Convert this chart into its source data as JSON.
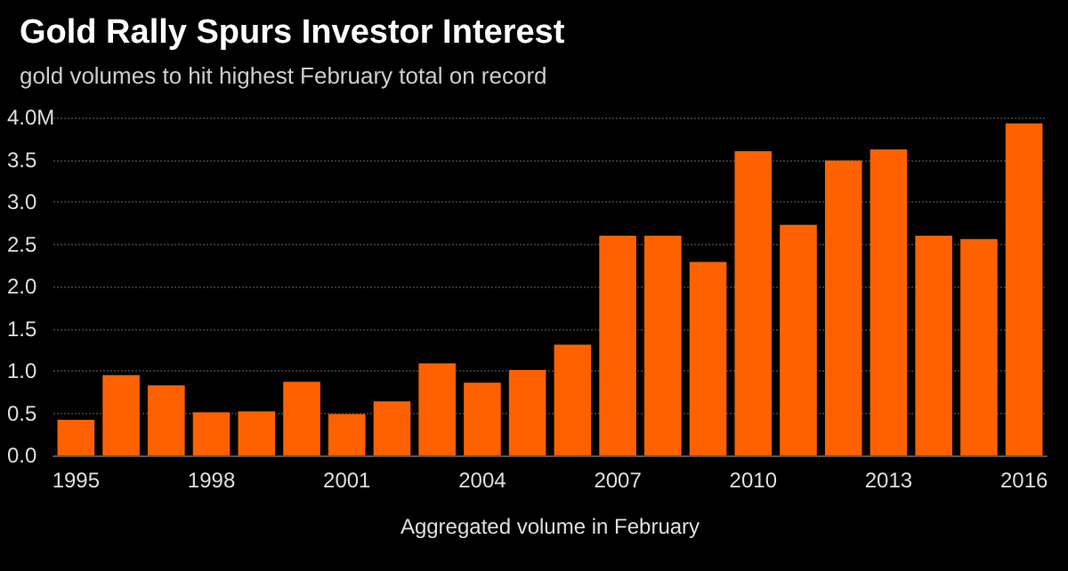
{
  "chart_data": {
    "type": "bar",
    "title": "Gold Rally Spurs Investor Interest",
    "subtitle": "gold volumes to hit highest February total on record",
    "xlabel": "Aggregated volume in February",
    "categories": [
      "1995",
      null,
      null,
      "1998",
      null,
      null,
      "2001",
      null,
      null,
      "2004",
      null,
      null,
      "2007",
      null,
      null,
      "2010",
      null,
      null,
      "2013",
      null,
      null,
      "2016"
    ],
    "values": [
      0.42,
      0.95,
      0.83,
      0.51,
      0.52,
      0.87,
      0.49,
      0.64,
      1.09,
      0.86,
      1.01,
      1.31,
      2.6,
      2.6,
      2.29,
      3.6,
      2.73,
      3.49,
      3.62,
      2.6,
      2.56,
      3.93
    ],
    "color": "#ff6100",
    "ylim": [
      0,
      4
    ],
    "yticks": [
      {
        "value": 0,
        "label": "0.0"
      },
      {
        "value": 0.5,
        "label": "0.5"
      },
      {
        "value": 1,
        "label": "1.0"
      },
      {
        "value": 1.5,
        "label": "1.5"
      },
      {
        "value": 2,
        "label": "2.0"
      },
      {
        "value": 2.5,
        "label": "2.5"
      },
      {
        "value": 3,
        "label": "3.0"
      },
      {
        "value": 3.5,
        "label": "3.5"
      },
      {
        "value": 4,
        "label": "4.0M"
      }
    ],
    "grid": "y"
  }
}
